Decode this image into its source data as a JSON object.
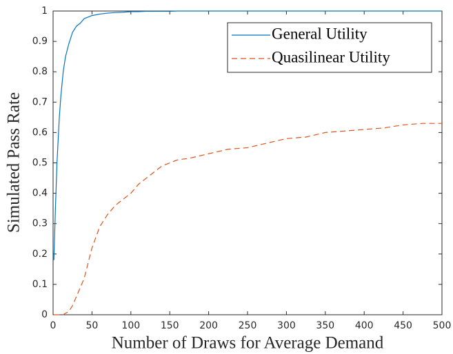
{
  "chart_data": {
    "type": "line",
    "xlabel": "Number of Draws for Average Demand",
    "ylabel": "Simulated Pass Rate",
    "x": [
      1,
      3,
      5,
      8,
      10,
      13,
      16,
      20,
      25,
      30,
      35,
      40,
      45,
      50,
      60,
      70,
      80,
      90,
      100,
      110,
      120,
      130,
      140,
      150,
      160,
      175,
      200,
      225,
      250,
      275,
      300,
      325,
      350,
      375,
      400,
      425,
      450,
      475,
      500
    ],
    "series": [
      {
        "name": "General Utility",
        "color": "#0072bd",
        "dash": false,
        "values": [
          0.18,
          0.35,
          0.5,
          0.65,
          0.72,
          0.8,
          0.85,
          0.89,
          0.93,
          0.95,
          0.96,
          0.975,
          0.98,
          0.985,
          0.99,
          0.993,
          0.995,
          0.996,
          0.998,
          0.998,
          0.999,
          0.999,
          0.999,
          0.999,
          1,
          1,
          1,
          1,
          1,
          1,
          1,
          1,
          1,
          1,
          1,
          1,
          1,
          1,
          1
        ]
      },
      {
        "name": "Quasilinear Utility",
        "color": "#d95319",
        "dash": true,
        "values": [
          0,
          0,
          0,
          0,
          0,
          0,
          0.005,
          0.01,
          0.03,
          0.06,
          0.09,
          0.12,
          0.17,
          0.22,
          0.29,
          0.33,
          0.36,
          0.38,
          0.4,
          0.43,
          0.45,
          0.47,
          0.49,
          0.5,
          0.51,
          0.515,
          0.53,
          0.545,
          0.55,
          0.565,
          0.58,
          0.585,
          0.6,
          0.605,
          0.61,
          0.615,
          0.625,
          0.63,
          0.63
        ]
      }
    ],
    "xlim": [
      0,
      500
    ],
    "xticks": [
      0,
      50,
      100,
      150,
      200,
      250,
      300,
      350,
      400,
      450,
      500
    ],
    "ylim": [
      0,
      1
    ],
    "yticks": [
      0,
      0.1,
      0.2,
      0.3,
      0.4,
      0.5,
      0.6,
      0.7,
      0.8,
      0.9,
      1
    ],
    "grid": false,
    "legend": "upper right"
  }
}
